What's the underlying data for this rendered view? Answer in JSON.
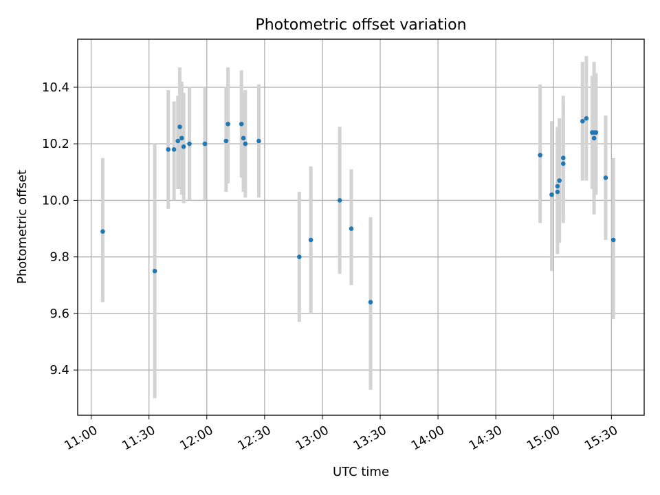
{
  "chart_data": {
    "type": "scatter",
    "title": "Photometric offset variation",
    "xlabel": "UTC time",
    "ylabel": "Photometric offset",
    "x_unit": "UTC time (hh:mm)",
    "xlim": [
      "10:53",
      "15:47"
    ],
    "ylim": [
      9.24,
      10.57
    ],
    "grid": true,
    "legend": "none",
    "x_ticks": [
      "11:00",
      "11:30",
      "12:00",
      "12:30",
      "13:00",
      "13:30",
      "14:00",
      "14:30",
      "15:00",
      "15:30"
    ],
    "y_ticks": [
      "9.4",
      "9.6",
      "9.8",
      "10.0",
      "10.2",
      "10.4"
    ],
    "colors": {
      "marker": "#1f77b4",
      "errorbar": "#d3d3d3"
    },
    "series": [
      {
        "points": [
          {
            "x": "11:06",
            "y": 9.89,
            "ylow": 9.64,
            "yhigh": 10.15
          },
          {
            "x": "11:33",
            "y": 9.75,
            "ylow": 9.3,
            "yhigh": 10.2
          },
          {
            "x": "11:40",
            "y": 10.18,
            "ylow": 9.97,
            "yhigh": 10.39
          },
          {
            "x": "11:43",
            "y": 10.18,
            "ylow": 10.0,
            "yhigh": 10.35
          },
          {
            "x": "11:45",
            "y": 10.21,
            "ylow": 10.04,
            "yhigh": 10.37
          },
          {
            "x": "11:46",
            "y": 10.26,
            "ylow": 10.04,
            "yhigh": 10.47
          },
          {
            "x": "11:47",
            "y": 10.22,
            "ylow": 10.02,
            "yhigh": 10.42
          },
          {
            "x": "11:48",
            "y": 10.19,
            "ylow": 9.99,
            "yhigh": 10.38
          },
          {
            "x": "11:51",
            "y": 10.2,
            "ylow": 10.0,
            "yhigh": 10.4
          },
          {
            "x": "11:59",
            "y": 10.2,
            "ylow": 10.0,
            "yhigh": 10.4
          },
          {
            "x": "12:10",
            "y": 10.21,
            "ylow": 10.03,
            "yhigh": 10.4
          },
          {
            "x": "12:11",
            "y": 10.27,
            "ylow": 10.06,
            "yhigh": 10.47
          },
          {
            "x": "12:18",
            "y": 10.27,
            "ylow": 10.08,
            "yhigh": 10.46
          },
          {
            "x": "12:19",
            "y": 10.22,
            "ylow": 10.03,
            "yhigh": 10.38
          },
          {
            "x": "12:20",
            "y": 10.2,
            "ylow": 10.01,
            "yhigh": 10.39
          },
          {
            "x": "12:27",
            "y": 10.21,
            "ylow": 10.01,
            "yhigh": 10.41
          },
          {
            "x": "12:48",
            "y": 9.8,
            "ylow": 9.57,
            "yhigh": 10.03
          },
          {
            "x": "12:54",
            "y": 9.86,
            "ylow": 9.6,
            "yhigh": 10.12
          },
          {
            "x": "13:09",
            "y": 10.0,
            "ylow": 9.74,
            "yhigh": 10.26
          },
          {
            "x": "13:15",
            "y": 9.9,
            "ylow": 9.7,
            "yhigh": 10.11
          },
          {
            "x": "13:25",
            "y": 9.64,
            "ylow": 9.33,
            "yhigh": 9.94
          },
          {
            "x": "14:53",
            "y": 10.16,
            "ylow": 9.92,
            "yhigh": 10.41
          },
          {
            "x": "14:59",
            "y": 10.02,
            "ylow": 9.75,
            "yhigh": 10.28
          },
          {
            "x": "15:02",
            "y": 10.03,
            "ylow": 9.81,
            "yhigh": 10.26
          },
          {
            "x": "15:02",
            "y": 10.05,
            "ylow": 9.85,
            "yhigh": 10.24
          },
          {
            "x": "15:03",
            "y": 10.07,
            "ylow": 9.85,
            "yhigh": 10.29
          },
          {
            "x": "15:05",
            "y": 10.13,
            "ylow": 9.92,
            "yhigh": 10.35
          },
          {
            "x": "15:05",
            "y": 10.15,
            "ylow": 9.94,
            "yhigh": 10.37
          },
          {
            "x": "15:15",
            "y": 10.28,
            "ylow": 10.07,
            "yhigh": 10.49
          },
          {
            "x": "15:17",
            "y": 10.29,
            "ylow": 10.07,
            "yhigh": 10.51
          },
          {
            "x": "15:20",
            "y": 10.24,
            "ylow": 10.04,
            "yhigh": 10.44
          },
          {
            "x": "15:21",
            "y": 10.24,
            "ylow": 10.0,
            "yhigh": 10.49
          },
          {
            "x": "15:21",
            "y": 10.22,
            "ylow": 9.95,
            "yhigh": 10.47
          },
          {
            "x": "15:22",
            "y": 10.24,
            "ylow": 10.02,
            "yhigh": 10.45
          },
          {
            "x": "15:27",
            "y": 10.08,
            "ylow": 9.86,
            "yhigh": 10.3
          },
          {
            "x": "15:31",
            "y": 9.86,
            "ylow": 9.58,
            "yhigh": 10.15
          }
        ]
      }
    ]
  }
}
